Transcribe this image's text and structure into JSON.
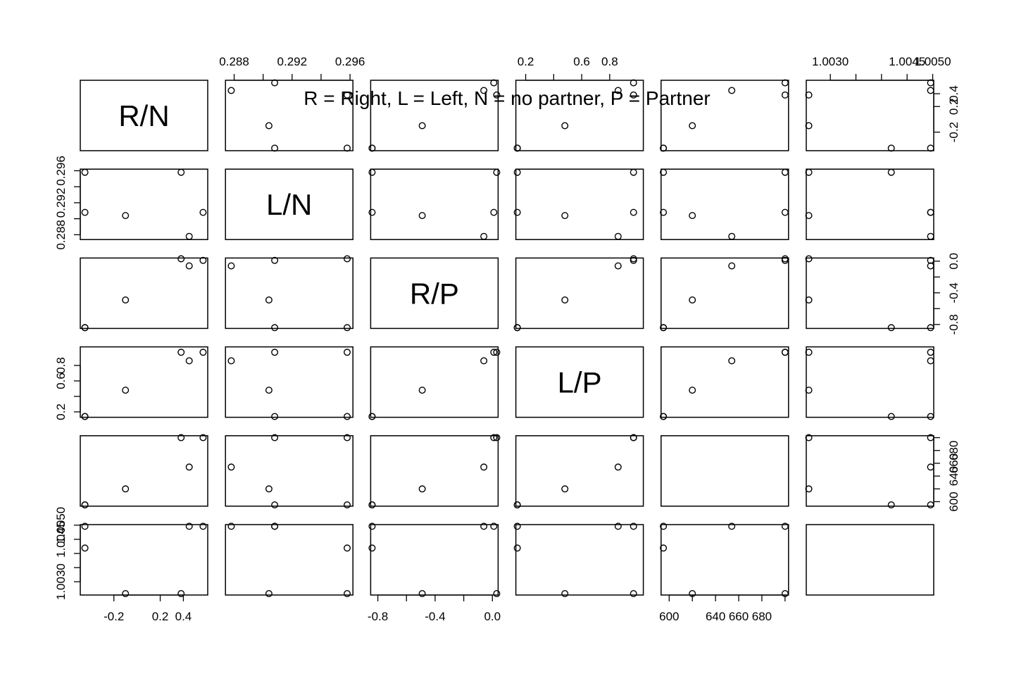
{
  "chart_data": {
    "type": "scatter",
    "subtype": "scatterplot-matrix",
    "title": "R = Right, L = Left, N = no partner, P = Partner",
    "variables": [
      {
        "label": "R/N",
        "ylim": [
          -0.49,
          0.61
        ],
        "ticks": [
          -0.2,
          0.2,
          0.4
        ],
        "tick_labels": [
          "-0.2",
          "0.2",
          "0.4"
        ]
      },
      {
        "label": "L/N",
        "ylim": [
          0.2874,
          0.2962
        ],
        "ticks": [
          0.288,
          0.29,
          0.292,
          0.294,
          0.296
        ],
        "tick_labels": [
          "0.288",
          "",
          "0.292",
          "",
          "0.296"
        ]
      },
      {
        "label": "R/P",
        "ylim": [
          -0.85,
          0.04
        ],
        "ticks": [
          -0.8,
          -0.6,
          -0.4,
          -0.2,
          0.0
        ],
        "tick_labels": [
          "-0.8",
          "",
          "-0.4",
          "",
          "0.0"
        ]
      },
      {
        "label": "L/P",
        "ylim": [
          0.13,
          1.04
        ],
        "ticks": [
          0.2,
          0.4,
          0.6,
          0.8
        ],
        "tick_labels": [
          "0.2",
          "",
          "0.6",
          "0.8"
        ]
      },
      {
        "label": "",
        "ylim": [
          593,
          703
        ],
        "ticks": [
          600,
          620,
          640,
          660,
          680,
          700
        ],
        "tick_labels": [
          "600",
          "",
          "640",
          "660",
          "680",
          ""
        ]
      },
      {
        "label": "",
        "ylim": [
          1.00253,
          1.00502
        ],
        "ticks": [
          1.003,
          1.0035,
          1.004,
          1.0045,
          1.005
        ],
        "tick_labels": [
          "1.0030",
          "",
          "",
          "1.0045",
          "1.0050"
        ]
      }
    ],
    "observations": [
      [
        0.57,
        0.2908,
        0.01,
        0.97,
        700,
        1.00496
      ],
      [
        -0.45,
        0.2958,
        -0.84,
        0.14,
        595,
        1.00419
      ],
      [
        -0.1,
        0.2904,
        -0.49,
        0.48,
        620,
        1.00258
      ],
      [
        0.45,
        0.2878,
        -0.06,
        0.86,
        654,
        1.00496
      ],
      [
        0.38,
        0.2958,
        0.03,
        0.97,
        700,
        1.00258
      ],
      [
        -0.45,
        0.2908,
        -0.84,
        0.14,
        595,
        1.00496
      ]
    ],
    "bottom_axis_columns": [
      0,
      2,
      4
    ],
    "top_axis_columns": [
      1,
      3,
      5
    ],
    "left_axis_rows": [
      1,
      3,
      5
    ],
    "right_axis_rows": [
      0,
      2,
      4
    ],
    "xlabel": "",
    "ylabel": "",
    "grid": false,
    "legend": "none"
  }
}
